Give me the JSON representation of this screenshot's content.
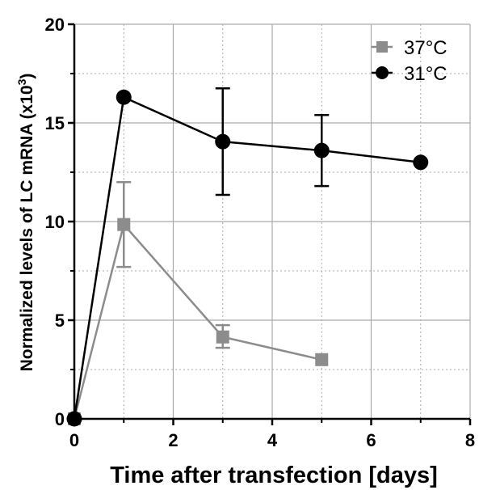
{
  "colors": {
    "series_37": "#8c8c8c",
    "series_31": "#000000",
    "grid": "#aaaaaa",
    "axis": "#000000"
  },
  "chart_data": {
    "type": "line",
    "xlabel": "Time after transfection [days]",
    "ylabel_main": "Normalized levels of LC mRNA (x10",
    "ylabel_sup": "3",
    "ylabel_close": ")",
    "xlim": [
      0,
      8
    ],
    "ylim": [
      0,
      20
    ],
    "x_ticks": [
      0,
      2,
      4,
      6,
      8
    ],
    "y_ticks": [
      0,
      5,
      10,
      15,
      20
    ],
    "x_tick_labels": [
      "0",
      "2",
      "4",
      "6",
      "8"
    ],
    "y_tick_labels": [
      "0",
      "5",
      "10",
      "15",
      "20"
    ],
    "grid": "major solid, minor dotted",
    "legend_position": "top-right",
    "series": [
      {
        "name": "37°C",
        "marker": "square",
        "color": "#8c8c8c",
        "points": [
          {
            "x": 0,
            "y": 0
          },
          {
            "x": 1,
            "y": 9.85,
            "err_low": 7.7,
            "err_high": 12.0
          },
          {
            "x": 3,
            "y": 4.15,
            "err_low": 3.6,
            "err_high": 4.75
          },
          {
            "x": 5,
            "y": 3.0
          }
        ]
      },
      {
        "name": "31°C",
        "marker": "circle",
        "color": "#000000",
        "points": [
          {
            "x": 0,
            "y": 0
          },
          {
            "x": 1,
            "y": 16.3
          },
          {
            "x": 3,
            "y": 14.05,
            "err_low": 11.35,
            "err_high": 16.75
          },
          {
            "x": 5,
            "y": 13.6,
            "err_low": 11.8,
            "err_high": 15.4
          },
          {
            "x": 7,
            "y": 13.0
          }
        ]
      }
    ]
  }
}
